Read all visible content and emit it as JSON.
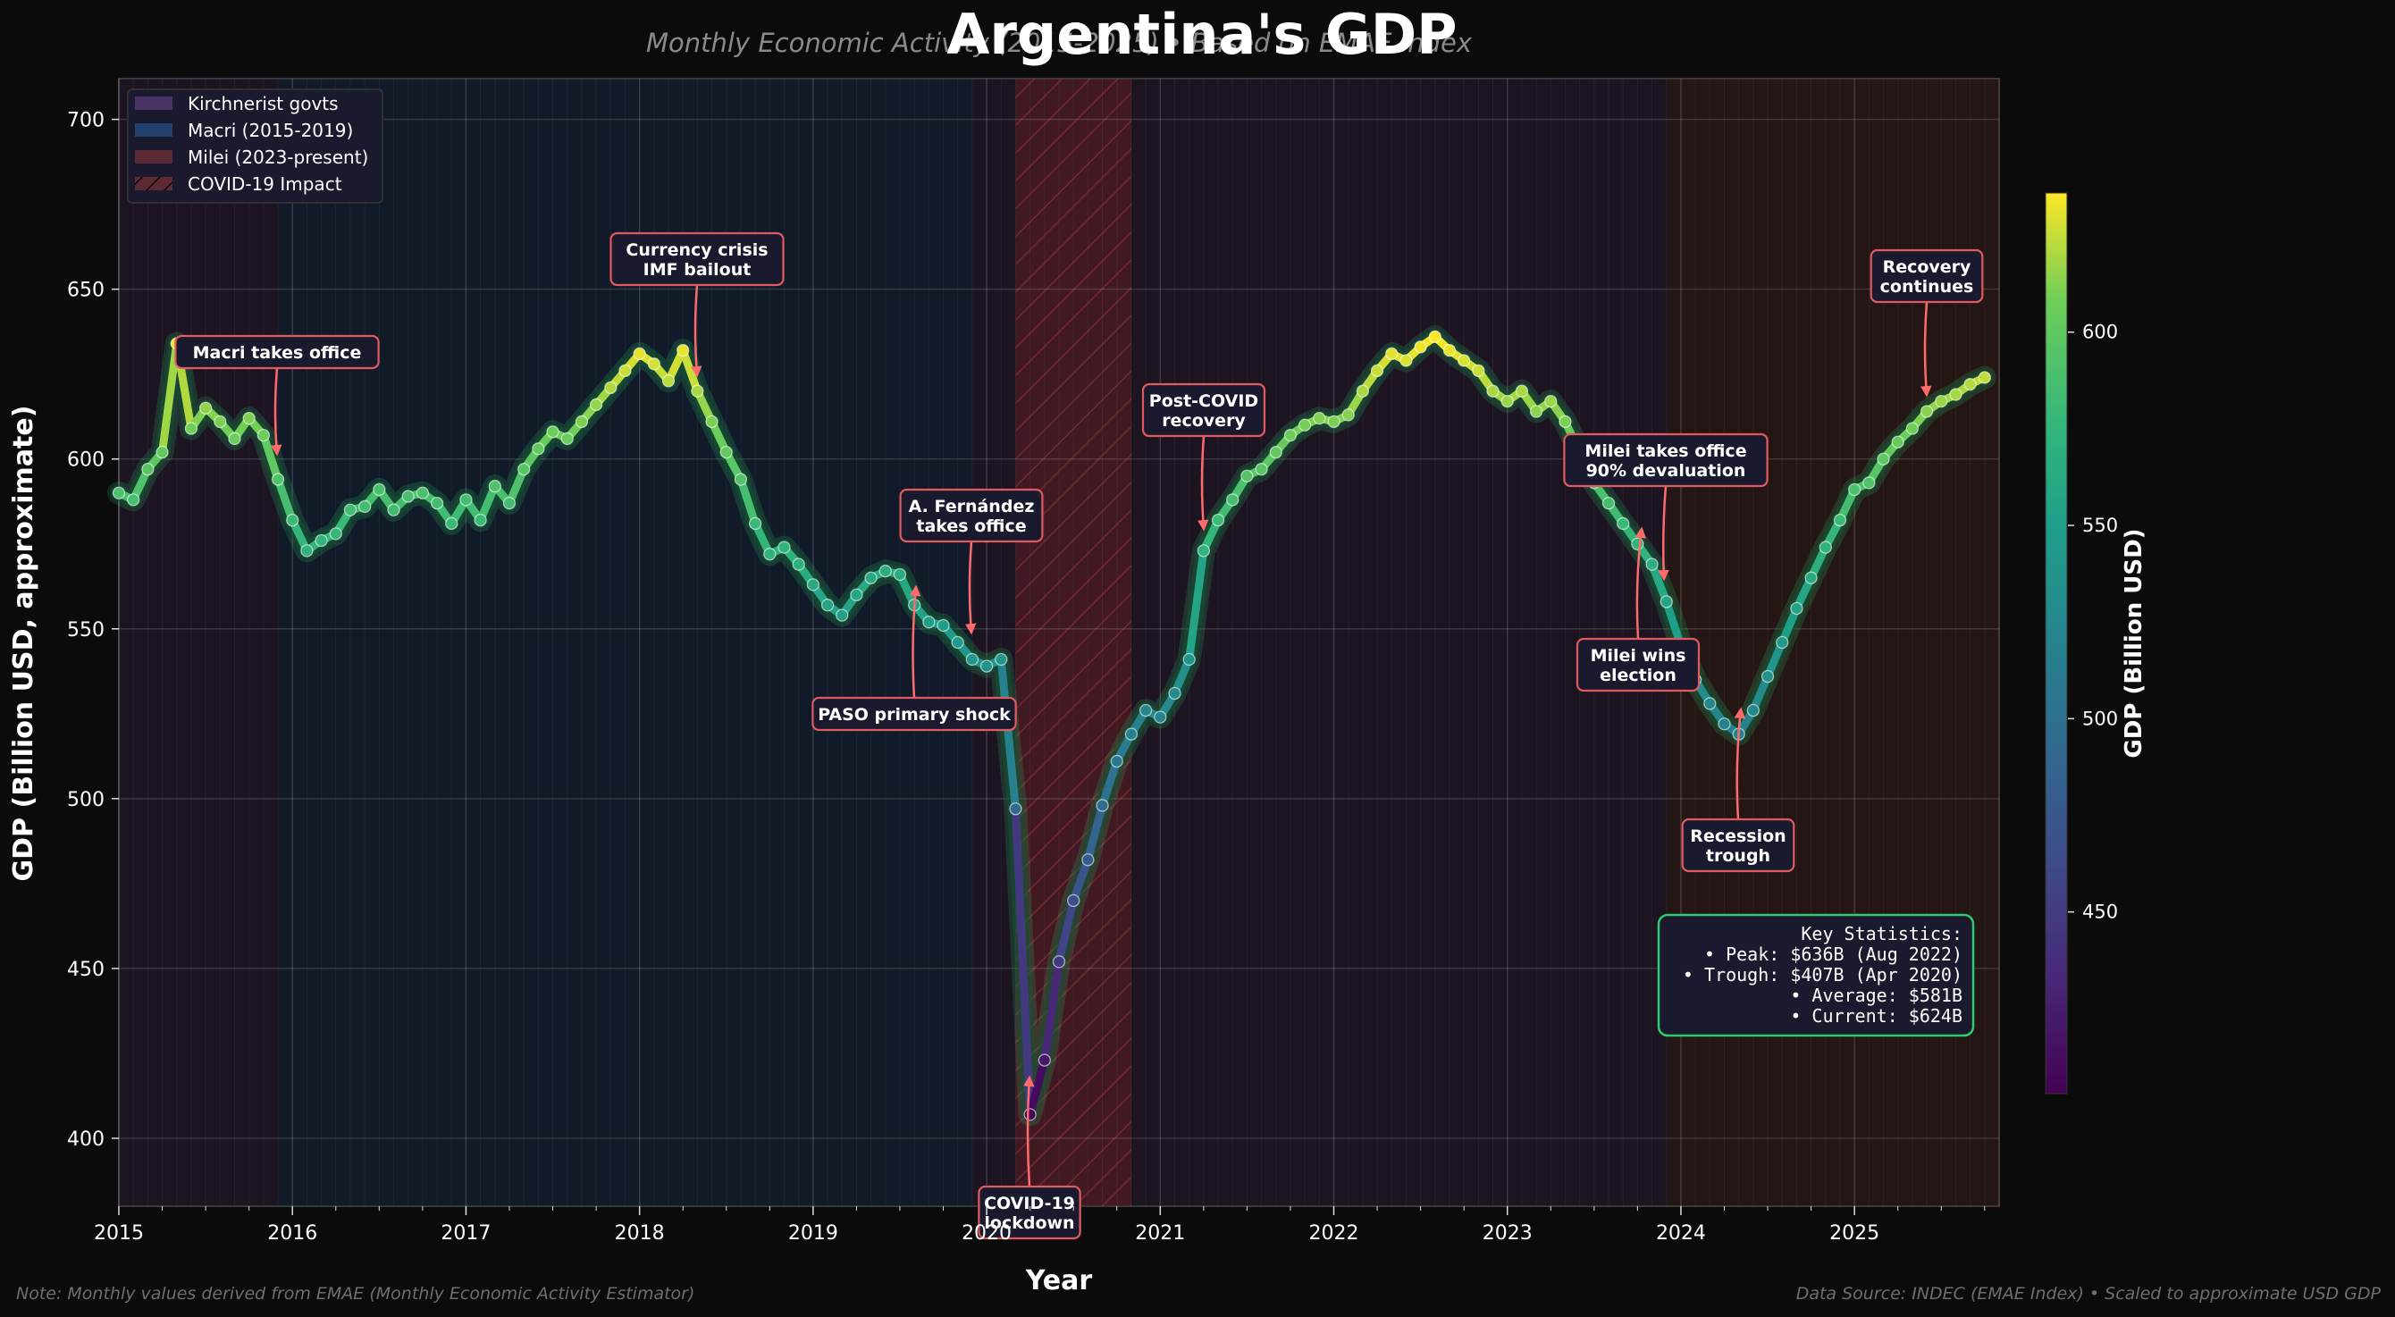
{
  "chart_data": {
    "type": "line",
    "title": "Argentina's GDP",
    "subtitle": "Monthly Economic Activity (2015-2025) • Based on EMAE Index",
    "xlabel": "Year",
    "ylabel": "GDP (Billion USD, approximate)",
    "ylim": [
      380,
      712
    ],
    "xlim": [
      "2015-01",
      "2025-10"
    ],
    "grid": true,
    "x_start": "2015-01",
    "x_tick_labels": [
      "2015",
      "2016",
      "2017",
      "2018",
      "2019",
      "2020",
      "2021",
      "2022",
      "2023",
      "2024",
      "2025"
    ],
    "y_tick_labels": [
      "400",
      "450",
      "500",
      "550",
      "600",
      "650",
      "700"
    ],
    "y_ticks": [
      400,
      450,
      500,
      550,
      600,
      650,
      700
    ],
    "series": [
      {
        "name": "GDP (Billion USD)",
        "values": [
          590,
          588,
          597,
          602,
          634,
          609,
          615,
          611,
          606,
          612,
          607,
          594,
          582,
          573,
          576,
          578,
          585,
          586,
          591,
          585,
          589,
          590,
          587,
          581,
          588,
          582,
          592,
          587,
          597,
          603,
          608,
          606,
          611,
          616,
          621,
          626,
          631,
          628,
          623,
          632,
          620,
          611,
          602,
          594,
          581,
          572,
          574,
          569,
          563,
          557,
          554,
          560,
          565,
          567,
          566,
          557,
          552,
          551,
          546,
          541,
          539,
          541,
          497,
          407,
          423,
          452,
          470,
          482,
          498,
          511,
          519,
          526,
          524,
          531,
          541,
          573,
          582,
          588,
          595,
          597,
          602,
          607,
          610,
          612,
          611,
          613,
          620,
          626,
          631,
          629,
          633,
          636,
          632,
          629,
          626,
          620,
          617,
          620,
          614,
          617,
          611,
          602,
          593,
          587,
          581,
          575,
          569,
          558,
          545,
          535,
          528,
          522,
          519,
          526,
          536,
          546,
          556,
          565,
          574,
          582,
          591,
          593,
          600,
          605,
          609,
          614,
          617,
          619,
          622,
          624
        ]
      }
    ],
    "colorbar": {
      "label": "GDP (Billion USD)",
      "colormap": "viridis",
      "range": [
        407,
        636
      ],
      "tick_labels": [
        "450",
        "500",
        "550",
        "600"
      ],
      "ticks": [
        450,
        500,
        550,
        600
      ]
    },
    "regions": [
      {
        "name": "Kirchnerist govts",
        "start": "2015-01",
        "end": "2015-12",
        "color": "#3d2b5a"
      },
      {
        "name": "Macri (2015-2019)",
        "start": "2015-12",
        "end": "2019-12",
        "color": "#1f3a5f"
      },
      {
        "name": "Kirchnerist govts",
        "start": "2019-12",
        "end": "2023-12",
        "color": "#3d2b5a"
      },
      {
        "name": "Milei (2023-present)",
        "start": "2023-12",
        "end": "2025-11",
        "color": "#5a2a2a"
      },
      {
        "name": "COVID-19 Impact",
        "start": "2020-03",
        "end": "2020-11",
        "color": "#5a2a2a",
        "hatched": true
      }
    ],
    "legend": {
      "placement": "top-left",
      "entries": [
        {
          "label": "Kirchnerist govts",
          "color": "#4a3366"
        },
        {
          "label": "Macri (2015-2019)",
          "color": "#23406a"
        },
        {
          "label": "Milei (2023-present)",
          "color": "#5c2a34"
        },
        {
          "label": "COVID-19 Impact",
          "color": "#5c2a34",
          "hatched": true
        }
      ]
    },
    "annotations": [
      {
        "lines": [
          "Macri takes office"
        ],
        "target": "2015-12"
      },
      {
        "lines": [
          "Currency crisis",
          "IMF bailout"
        ],
        "target": "2018-05"
      },
      {
        "lines": [
          "A. Fernández",
          "takes office"
        ],
        "target": "2019-12"
      },
      {
        "lines": [
          "PASO primary shock"
        ],
        "target": "2019-08"
      },
      {
        "lines": [
          "COVID-19",
          "lockdown"
        ],
        "target": "2020-04"
      },
      {
        "lines": [
          "Post-COVID",
          "recovery"
        ],
        "target": "2021-04"
      },
      {
        "lines": [
          "Milei takes office",
          "90% devaluation"
        ],
        "target": "2023-12"
      },
      {
        "lines": [
          "Milei wins",
          "election"
        ],
        "target": "2023-10"
      },
      {
        "lines": [
          "Recession",
          "trough"
        ],
        "target": "2024-05"
      },
      {
        "lines": [
          "Recovery",
          "continues"
        ],
        "target": "2025-04"
      }
    ],
    "stats_box": {
      "lines": [
        "Key Statistics:",
        "• Peak: $636B (Aug 2022)",
        "• Trough: $407B (Apr 2020)",
        "• Average: $581B",
        "• Current: $624B"
      ],
      "border_color": "#2ecc71"
    }
  },
  "footer": {
    "note": "Note: Monthly values derived from EMAE (Monthly Economic Activity Estimator)",
    "source": "Data Source: INDEC (EMAE Index) • Scaled to approximate USD GDP"
  },
  "colors": {
    "annotation_border": "#e05a60",
    "annotation_bg": "#1a1a2e",
    "arrow": "#ff6b6b"
  }
}
